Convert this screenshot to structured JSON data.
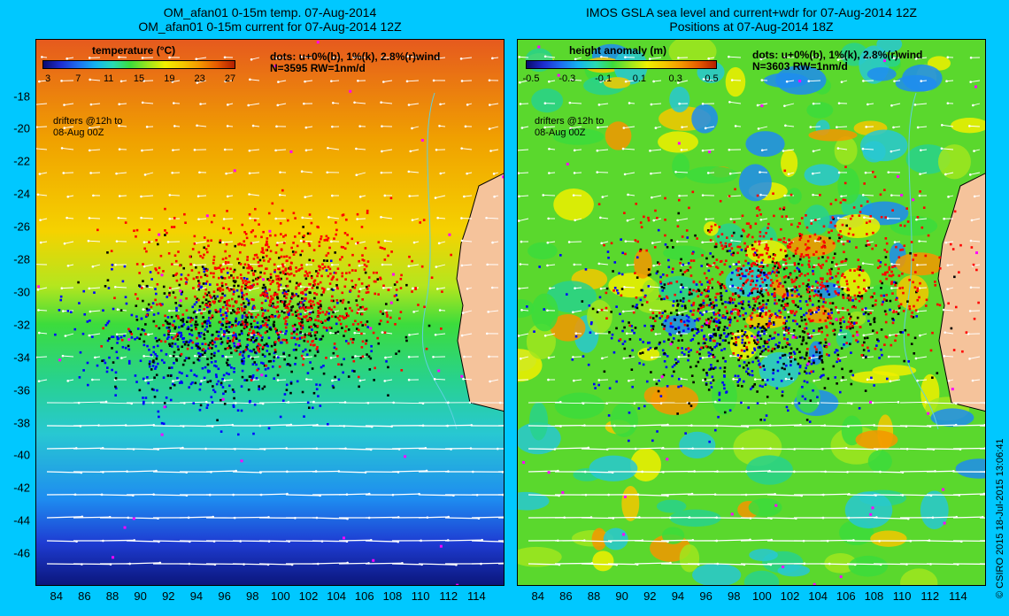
{
  "left_panel": {
    "title_line1": "OM_afan01 0-15m temp. 07-Aug-2014",
    "title_line2": "OM_afan01 0-15m current for 07-Aug-2014 12Z",
    "colorbar_title": "temperature (°C)",
    "colorbar_ticks": [
      "3",
      "7",
      "11",
      "15",
      "19",
      "23",
      "27"
    ],
    "dots_note_line1": "dots: u+0%(b), 1%(k), 2.8%(r)wind",
    "dots_note_line2": "N=3595 RW=1nm/d",
    "drifters_line1": "drifters @12h to",
    "drifters_line2": "08-Aug 00Z"
  },
  "right_panel": {
    "title_line1": "IMOS GSLA sea level and current+wdr for 07-Aug-2014 12Z",
    "title_line2": "Positions at 07-Aug-2014 18Z",
    "colorbar_title": "height anomaly  (m)",
    "colorbar_ticks": [
      "-0.5",
      "-0.3",
      "-0.1",
      "0.1",
      "0.3",
      "0.5"
    ],
    "dots_note_line1": "dots: u+0%(b), 1%(k), 2.8%(r)wind",
    "dots_note_line2": "N=3603 RW=1nm/d",
    "drifters_line1": "drifters @12h to",
    "drifters_line2": "08-Aug 00Z"
  },
  "y_axis_labels": [
    "-18",
    "-20",
    "-22",
    "-24",
    "-26",
    "-28",
    "-30",
    "-32",
    "-34",
    "-36",
    "-38",
    "-40",
    "-42",
    "-44",
    "-46"
  ],
  "x_axis_labels": [
    "84",
    "86",
    "88",
    "90",
    "92",
    "94",
    "96",
    "98",
    "100",
    "102",
    "104",
    "106",
    "108",
    "110",
    "112",
    "114"
  ],
  "copyright": "© CSIRO 2015   18-Jul-2015 13:06:41",
  "colors": {
    "background": "#00c8ff",
    "blue_dots": "#0000ff",
    "black_dots": "#000000",
    "red_dots": "#ff0000",
    "land": "#f5c39b",
    "vectors": "#ffffff"
  },
  "map_extent": {
    "lon": [
      82.5,
      116
    ],
    "lat": [
      -48,
      -14.5
    ]
  }
}
